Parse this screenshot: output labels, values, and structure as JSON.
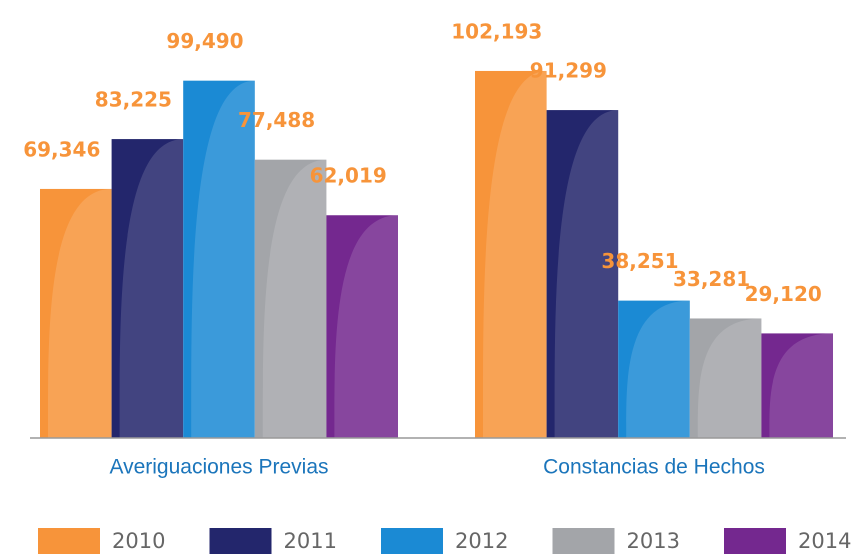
{
  "chart_data": {
    "type": "bar",
    "categories": [
      "Averiguaciones Previas",
      "Constancias de Hechos"
    ],
    "series": [
      {
        "name": "2010",
        "color": "#f7943a",
        "values": [
          69346,
          102193
        ],
        "value_labels": [
          "69,346",
          "102,193"
        ]
      },
      {
        "name": "2011",
        "color": "#23266c",
        "values": [
          83225,
          91299
        ],
        "value_labels": [
          "83,225",
          "91,299"
        ]
      },
      {
        "name": "2012",
        "color": "#1b8ad4",
        "values": [
          99490,
          38251
        ],
        "value_labels": [
          "99,490",
          "38,251"
        ]
      },
      {
        "name": "2013",
        "color": "#a3a5a9",
        "values": [
          77488,
          33281
        ],
        "value_labels": [
          "77,488",
          "33,281"
        ]
      },
      {
        "name": "2014",
        "color": "#74288f",
        "values": [
          62019,
          29120
        ],
        "value_labels": [
          "62,019",
          "29,120"
        ]
      }
    ],
    "ylim": [
      0,
      120000
    ]
  }
}
